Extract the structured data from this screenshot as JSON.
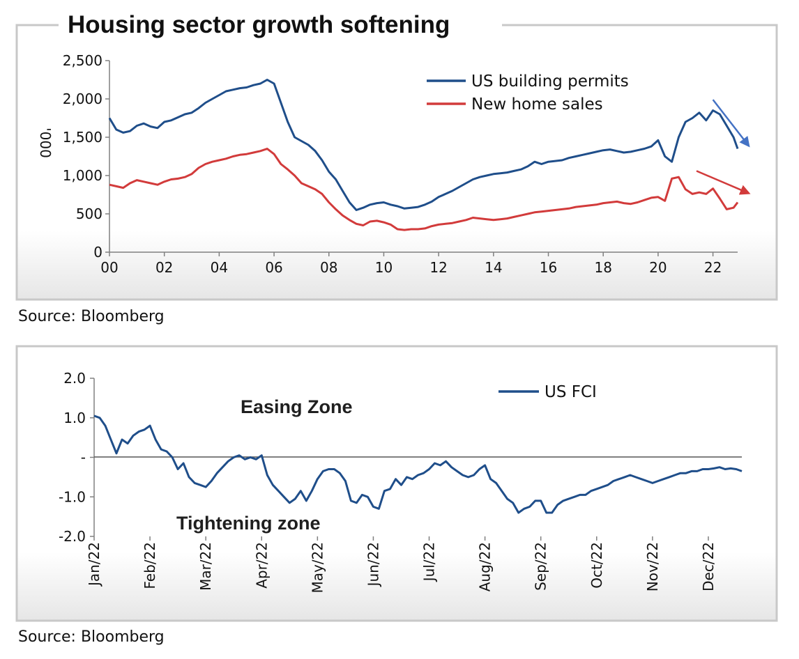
{
  "chart_data": [
    {
      "type": "line",
      "title": "Housing sector growth softening",
      "ylabel": "'000",
      "xlabel": "",
      "source": "Source: Bloomberg",
      "x_ticks": [
        "00",
        "02",
        "04",
        "06",
        "08",
        "10",
        "12",
        "14",
        "16",
        "18",
        "20",
        "22"
      ],
      "y_ticks": [
        "0",
        "500",
        "1,000",
        "1,500",
        "2,000",
        "2,500"
      ],
      "xlim": [
        2000,
        2022.9
      ],
      "ylim": [
        0,
        2500
      ],
      "legend_position": "top-right",
      "colors": {
        "permits": "#1f4e8a",
        "sales": "#d23b3b",
        "permits_arrow": "#4472c4",
        "sales_arrow": "#d23b3b"
      },
      "series": [
        {
          "name": "US building permits",
          "x": [
            2000.0,
            2000.25,
            2000.5,
            2000.75,
            2001.0,
            2001.25,
            2001.5,
            2001.75,
            2002.0,
            2002.25,
            2002.5,
            2002.75,
            2003.0,
            2003.25,
            2003.5,
            2003.75,
            2004.0,
            2004.25,
            2004.5,
            2004.75,
            2005.0,
            2005.25,
            2005.5,
            2005.75,
            2006.0,
            2006.25,
            2006.5,
            2006.75,
            2007.0,
            2007.25,
            2007.5,
            2007.75,
            2008.0,
            2008.25,
            2008.5,
            2008.75,
            2009.0,
            2009.25,
            2009.5,
            2009.75,
            2010.0,
            2010.25,
            2010.5,
            2010.75,
            2011.0,
            2011.25,
            2011.5,
            2011.75,
            2012.0,
            2012.25,
            2012.5,
            2012.75,
            2013.0,
            2013.25,
            2013.5,
            2013.75,
            2014.0,
            2014.25,
            2014.5,
            2014.75,
            2015.0,
            2015.25,
            2015.5,
            2015.75,
            2016.0,
            2016.25,
            2016.5,
            2016.75,
            2017.0,
            2017.25,
            2017.5,
            2017.75,
            2018.0,
            2018.25,
            2018.5,
            2018.75,
            2019.0,
            2019.25,
            2019.5,
            2019.75,
            2020.0,
            2020.25,
            2020.5,
            2020.75,
            2021.0,
            2021.25,
            2021.5,
            2021.75,
            2022.0,
            2022.25,
            2022.5,
            2022.75,
            2022.9
          ],
          "values": [
            1750,
            1600,
            1560,
            1580,
            1650,
            1680,
            1640,
            1620,
            1700,
            1720,
            1760,
            1800,
            1820,
            1880,
            1950,
            2000,
            2050,
            2100,
            2120,
            2140,
            2150,
            2180,
            2200,
            2250,
            2200,
            1950,
            1700,
            1500,
            1450,
            1400,
            1320,
            1200,
            1050,
            950,
            800,
            650,
            550,
            580,
            620,
            640,
            650,
            620,
            600,
            570,
            580,
            590,
            620,
            660,
            720,
            760,
            800,
            850,
            900,
            950,
            980,
            1000,
            1020,
            1030,
            1040,
            1060,
            1080,
            1120,
            1180,
            1150,
            1180,
            1190,
            1200,
            1230,
            1250,
            1270,
            1290,
            1310,
            1330,
            1340,
            1320,
            1300,
            1310,
            1330,
            1350,
            1380,
            1460,
            1250,
            1180,
            1500,
            1700,
            1750,
            1820,
            1720,
            1850,
            1800,
            1650,
            1500,
            1350
          ]
        },
        {
          "name": "New home sales",
          "x": [
            2000.0,
            2000.25,
            2000.5,
            2000.75,
            2001.0,
            2001.25,
            2001.5,
            2001.75,
            2002.0,
            2002.25,
            2002.5,
            2002.75,
            2003.0,
            2003.25,
            2003.5,
            2003.75,
            2004.0,
            2004.25,
            2004.5,
            2004.75,
            2005.0,
            2005.25,
            2005.5,
            2005.75,
            2006.0,
            2006.25,
            2006.5,
            2006.75,
            2007.0,
            2007.25,
            2007.5,
            2007.75,
            2008.0,
            2008.25,
            2008.5,
            2008.75,
            2009.0,
            2009.25,
            2009.5,
            2009.75,
            2010.0,
            2010.25,
            2010.5,
            2010.75,
            2011.0,
            2011.25,
            2011.5,
            2011.75,
            2012.0,
            2012.25,
            2012.5,
            2012.75,
            2013.0,
            2013.25,
            2013.5,
            2013.75,
            2014.0,
            2014.25,
            2014.5,
            2014.75,
            2015.0,
            2015.25,
            2015.5,
            2015.75,
            2016.0,
            2016.25,
            2016.5,
            2016.75,
            2017.0,
            2017.25,
            2017.5,
            2017.75,
            2018.0,
            2018.25,
            2018.5,
            2018.75,
            2019.0,
            2019.25,
            2019.5,
            2019.75,
            2020.0,
            2020.25,
            2020.5,
            2020.75,
            2021.0,
            2021.25,
            2021.5,
            2021.75,
            2022.0,
            2022.25,
            2022.5,
            2022.75,
            2022.9
          ],
          "values": [
            880,
            860,
            840,
            900,
            940,
            920,
            900,
            880,
            920,
            950,
            960,
            980,
            1020,
            1100,
            1150,
            1180,
            1200,
            1220,
            1250,
            1270,
            1280,
            1300,
            1320,
            1350,
            1280,
            1150,
            1080,
            1000,
            900,
            860,
            820,
            760,
            650,
            560,
            480,
            420,
            370,
            350,
            400,
            410,
            390,
            360,
            300,
            290,
            300,
            300,
            310,
            340,
            360,
            370,
            380,
            400,
            420,
            450,
            440,
            430,
            420,
            430,
            440,
            460,
            480,
            500,
            520,
            530,
            540,
            550,
            560,
            570,
            590,
            600,
            610,
            620,
            640,
            650,
            660,
            640,
            630,
            650,
            680,
            710,
            720,
            670,
            960,
            980,
            820,
            760,
            780,
            760,
            830,
            700,
            560,
            580,
            650
          ]
        }
      ],
      "annotations": [
        {
          "type": "arrow",
          "series": "US building permits",
          "x": [
            2022.0,
            2023.3
          ],
          "y": [
            1990,
            1390
          ]
        },
        {
          "type": "arrow",
          "series": "New home sales",
          "x": [
            2021.4,
            2023.3
          ],
          "y": [
            1060,
            770
          ]
        }
      ]
    },
    {
      "type": "line",
      "title": "",
      "xlabel": "",
      "ylabel": "",
      "source": "Source: Bloomberg",
      "x_ticks": [
        "Jan/22",
        "Feb/22",
        "Mar/22",
        "Apr/22",
        "May/22",
        "Jun/22",
        "Jul/22",
        "Aug/22",
        "Sep/22",
        "Oct/22",
        "Nov/22",
        "Dec/22"
      ],
      "y_ticks": [
        "-2.0",
        "-1.0",
        "-",
        "1.0",
        "2.0"
      ],
      "xlim": [
        0,
        11.6
      ],
      "ylim": [
        -2.0,
        2.0
      ],
      "legend_position": "top-right",
      "zone_labels": {
        "easing": "Easing Zone",
        "tightening": "Tightening zone"
      },
      "colors": {
        "fci": "#1f4e8a"
      },
      "series": [
        {
          "name": "US FCI",
          "x": [
            0.0,
            0.1,
            0.2,
            0.3,
            0.4,
            0.5,
            0.6,
            0.7,
            0.8,
            0.9,
            1.0,
            1.1,
            1.2,
            1.3,
            1.4,
            1.5,
            1.6,
            1.7,
            1.8,
            1.9,
            2.0,
            2.1,
            2.2,
            2.3,
            2.4,
            2.5,
            2.6,
            2.7,
            2.8,
            2.9,
            3.0,
            3.1,
            3.2,
            3.3,
            3.4,
            3.5,
            3.6,
            3.7,
            3.8,
            3.9,
            4.0,
            4.1,
            4.2,
            4.3,
            4.4,
            4.5,
            4.6,
            4.7,
            4.8,
            4.9,
            5.0,
            5.1,
            5.2,
            5.3,
            5.4,
            5.5,
            5.6,
            5.7,
            5.8,
            5.9,
            6.0,
            6.1,
            6.2,
            6.3,
            6.4,
            6.5,
            6.6,
            6.7,
            6.8,
            6.9,
            7.0,
            7.1,
            7.2,
            7.3,
            7.4,
            7.5,
            7.6,
            7.7,
            7.8,
            7.9,
            8.0,
            8.1,
            8.2,
            8.3,
            8.4,
            8.5,
            8.6,
            8.7,
            8.8,
            8.9,
            9.0,
            9.1,
            9.2,
            9.3,
            9.4,
            9.5,
            9.6,
            9.7,
            9.8,
            9.9,
            10.0,
            10.1,
            10.2,
            10.3,
            10.4,
            10.5,
            10.6,
            10.7,
            10.8,
            10.9,
            11.0,
            11.1,
            11.2,
            11.3,
            11.4,
            11.5,
            11.6
          ],
          "values": [
            1.05,
            1.0,
            0.8,
            0.45,
            0.1,
            0.45,
            0.35,
            0.55,
            0.65,
            0.7,
            0.8,
            0.45,
            0.2,
            0.15,
            0.0,
            -0.3,
            -0.15,
            -0.5,
            -0.65,
            -0.7,
            -0.75,
            -0.6,
            -0.4,
            -0.25,
            -0.1,
            0.0,
            0.05,
            -0.05,
            0.0,
            -0.05,
            0.05,
            -0.45,
            -0.7,
            -0.85,
            -1.0,
            -1.15,
            -1.05,
            -0.85,
            -1.1,
            -0.85,
            -0.55,
            -0.35,
            -0.3,
            -0.3,
            -0.4,
            -0.6,
            -1.1,
            -1.15,
            -0.95,
            -1.0,
            -1.25,
            -1.3,
            -0.85,
            -0.8,
            -0.55,
            -0.7,
            -0.5,
            -0.55,
            -0.45,
            -0.4,
            -0.3,
            -0.15,
            -0.2,
            -0.1,
            -0.25,
            -0.35,
            -0.45,
            -0.5,
            -0.45,
            -0.3,
            -0.2,
            -0.55,
            -0.65,
            -0.85,
            -1.05,
            -1.15,
            -1.4,
            -1.3,
            -1.25,
            -1.1,
            -1.1,
            -1.4,
            -1.4,
            -1.2,
            -1.1,
            -1.05,
            -1.0,
            -0.95,
            -0.95,
            -0.85,
            -0.8,
            -0.75,
            -0.7,
            -0.6,
            -0.55,
            -0.5,
            -0.45,
            -0.5,
            -0.55,
            -0.6,
            -0.65,
            -0.6,
            -0.55,
            -0.5,
            -0.45,
            -0.4,
            -0.4,
            -0.35,
            -0.35,
            -0.3,
            -0.3,
            -0.28,
            -0.25,
            -0.3,
            -0.28,
            -0.3,
            -0.35
          ]
        }
      ]
    }
  ]
}
